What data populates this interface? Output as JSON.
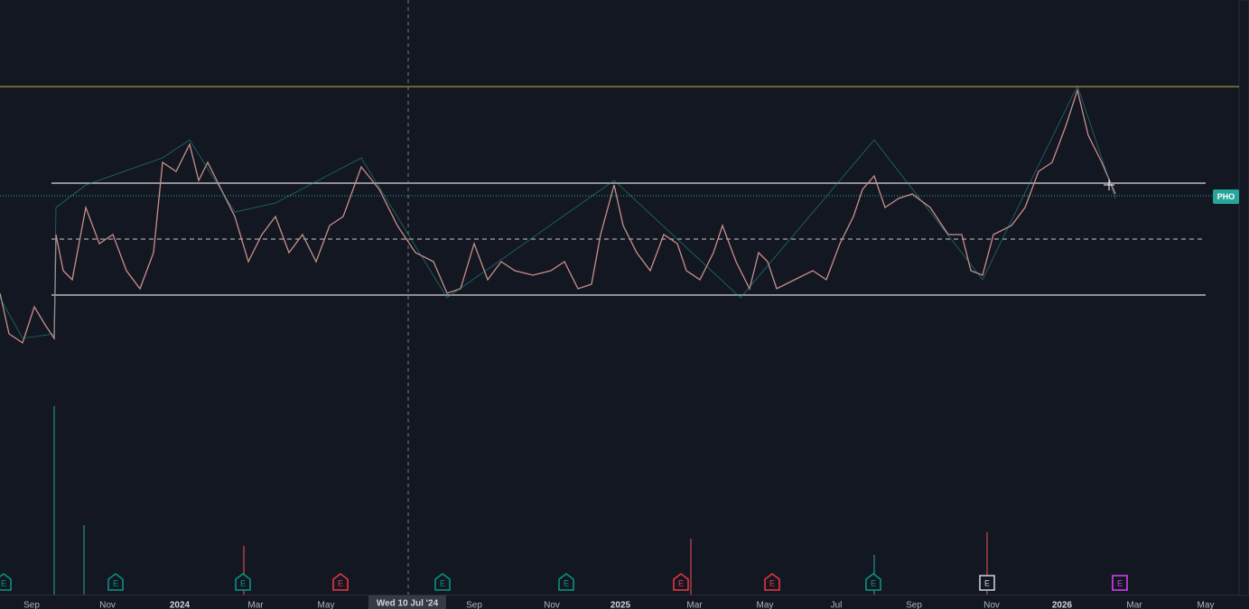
{
  "x_axis_labels": [
    "Sep",
    "Nov",
    "2024",
    "Mar",
    "May",
    "Sep",
    "Nov",
    "2025",
    "Mar",
    "May",
    "Jul",
    "Sep",
    "Nov",
    "2026",
    "Mar",
    "May"
  ],
  "crosshair_label": "Wed 10 Jul '24",
  "ticker_label": "PHO",
  "earnings_markers": [
    "E",
    "E",
    "E",
    "E",
    "E",
    "E",
    "E",
    "E",
    "E",
    "E",
    "E"
  ]
}
